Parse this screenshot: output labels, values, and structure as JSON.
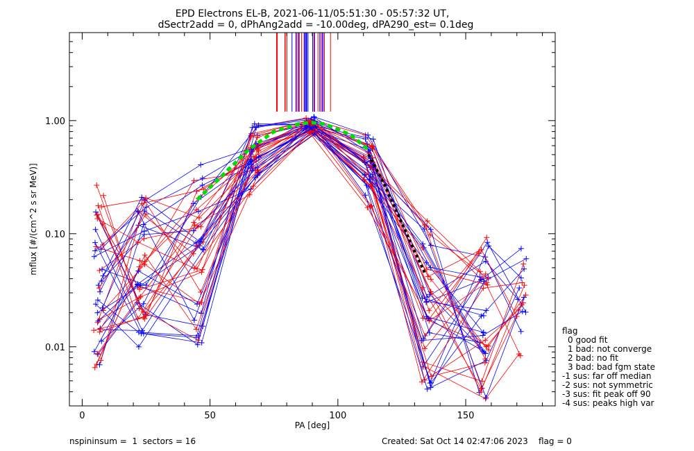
{
  "chart_data": {
    "type": "line",
    "title": "EPD Electrons EL-B, 2021-06-11/05:51:30 - 05:57:32 UT,",
    "subtitle": "dSectr2add = 0, dPhAng2add = -10.00deg, dPA290_est=   0.1deg",
    "xlabel": "PA [deg]",
    "ylabel": "mflux [#/(cm^2 s sr MeV)]",
    "xlim": [
      -5,
      185
    ],
    "ylim": [
      0.003,
      6.0
    ],
    "yscale": "log",
    "x_ticks": [
      0,
      50,
      100,
      150
    ],
    "x_tick_labels": [
      "0",
      "50",
      "100",
      "150"
    ],
    "y_ticks": [
      0.01,
      0.1,
      1.0
    ],
    "y_tick_labels": [
      "0.01",
      "0.10",
      "1.00"
    ],
    "grid": false,
    "legend": {
      "placement": "right-outside",
      "title": "flag",
      "entries": [
        "0 good fit",
        "1 bad: not converge",
        "2 bad: no fit",
        "3 bad: bad fgm state",
        "-1 sus: far off median",
        "-2 sus: not symmetric",
        "-3 sus: fit peak off 90",
        "-4 sus: peaks high var"
      ]
    },
    "series_colors": {
      "spin_a": "#ff0000",
      "spin_b": "#0000ff",
      "fit_green": "#00dd00",
      "fit_black": "#000000"
    },
    "sector_pa_groups": [
      {
        "x": 6.5,
        "y_range": [
          0.0063,
          0.37
        ]
      },
      {
        "x": 23.5,
        "y_range": [
          0.009,
          0.22
        ]
      },
      {
        "x": 45.5,
        "y_range": [
          0.0102,
          0.47
        ]
      },
      {
        "x": 67.5,
        "y_range": [
          0.2,
          1.05
        ]
      },
      {
        "x": 89.5,
        "y_range": [
          0.72,
          1.1
        ]
      },
      {
        "x": 112.0,
        "y_range": [
          0.16,
          0.9
        ]
      },
      {
        "x": 134.5,
        "y_range": [
          0.0042,
          0.13
        ]
      },
      {
        "x": 157.0,
        "y_range": [
          0.0032,
          0.13
        ]
      },
      {
        "x": 172.0,
        "y_range": [
          0.0055,
          0.075
        ]
      }
    ],
    "fit_curve_green": {
      "x": [
        45,
        55,
        65,
        75,
        85,
        90,
        95,
        105,
        112
      ],
      "y": [
        0.2,
        0.33,
        0.55,
        0.8,
        0.94,
        0.96,
        0.93,
        0.75,
        0.55
      ]
    },
    "fit_curve_black": {
      "x": [
        112,
        118,
        124,
        130,
        134
      ],
      "y": [
        0.5,
        0.28,
        0.14,
        0.07,
        0.045
      ]
    },
    "peak_markers_x_range": [
      76,
      98
    ]
  },
  "footer": {
    "left": "nspininsum =  1  sectors = 16",
    "right": "Created: Sat Oct 14 02:47:06 2023    flag = 0"
  }
}
